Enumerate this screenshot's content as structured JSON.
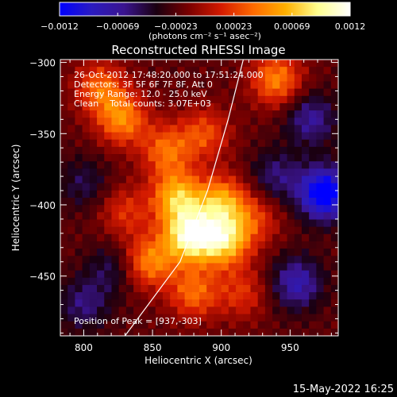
{
  "colorbar": {
    "ticks": [
      "-0.0012",
      "-0.00069",
      "-0.00023",
      "0.00023",
      "0.00069",
      "0.0012"
    ],
    "units_label": "(photons cm⁻² s⁻¹ asec⁻²)",
    "range": [
      -0.0012,
      0.0012
    ],
    "colormap": [
      "#0000ff",
      "#2b1bbf",
      "#3a148f",
      "#1a0010",
      "#7a0000",
      "#d41a00",
      "#ff6a00",
      "#ffb000",
      "#ffff90",
      "#ffffff"
    ]
  },
  "chart_data": {
    "type": "heatmap",
    "title": "Reconstructed RHESSI Image",
    "xlabel": "Heliocentric X (arcsec)",
    "ylabel": "Heliocentric Y (arcsec)",
    "xlim": [
      783,
      985
    ],
    "ylim": [
      -492,
      -298
    ],
    "x_ticks": [
      800,
      850,
      900,
      950
    ],
    "y_ticks": [
      -300,
      -350,
      -400,
      -450
    ],
    "x_tick_labels": [
      "800",
      "850",
      "900",
      "950"
    ],
    "y_tick_labels": [
      "−300",
      "−350",
      "−400",
      "−450"
    ],
    "limb_line": [
      {
        "x": 830,
        "y": -492
      },
      {
        "x": 870,
        "y": -440
      },
      {
        "x": 890,
        "y": -390
      },
      {
        "x": 905,
        "y": -340
      },
      {
        "x": 916,
        "y": -298
      }
    ],
    "hot_spots": [
      {
        "x": 877,
        "y": -422,
        "value": 0.0012
      },
      {
        "x": 902,
        "y": -425,
        "value": 0.001
      },
      {
        "x": 868,
        "y": -395,
        "value": 0.0009
      },
      {
        "x": 900,
        "y": -398,
        "value": 0.0008
      },
      {
        "x": 860,
        "y": -362,
        "value": 0.0006
      },
      {
        "x": 888,
        "y": -350,
        "value": 0.0005
      },
      {
        "x": 828,
        "y": -340,
        "value": 0.0007
      },
      {
        "x": 812,
        "y": -318,
        "value": 0.0006
      },
      {
        "x": 940,
        "y": -312,
        "value": 0.0007
      },
      {
        "x": 848,
        "y": -440,
        "value": 0.0007
      },
      {
        "x": 830,
        "y": -405,
        "value": 0.0004
      },
      {
        "x": 880,
        "y": -462,
        "value": 0.0006
      },
      {
        "x": 915,
        "y": -462,
        "value": 0.0004
      },
      {
        "x": 925,
        "y": -410,
        "value": 0.0004
      }
    ],
    "cold_spots": [
      {
        "x": 975,
        "y": -392,
        "value": -0.0011
      },
      {
        "x": 955,
        "y": -455,
        "value": -0.0006
      },
      {
        "x": 965,
        "y": -340,
        "value": -0.0005
      },
      {
        "x": 940,
        "y": -380,
        "value": -0.0004
      },
      {
        "x": 800,
        "y": -470,
        "value": -0.0004
      },
      {
        "x": 820,
        "y": -445,
        "value": -0.0003
      },
      {
        "x": 800,
        "y": -385,
        "value": -0.0003
      }
    ],
    "peak": {
      "x": 937,
      "y": -303
    },
    "info_lines": [
      "26-Oct-2012 17:48:20.000 to 17:51:24.000",
      "Detectors: 3F 5F 6F 7F 8F, Att 0",
      "Energy Range: 12.0 - 25.0 keV",
      "Clean    Total counts: 3.07E+03"
    ],
    "peak_label": "Position of Peak = [937,-303]",
    "grid": false
  },
  "footer": {
    "timestamp": "15-May-2022 16:25"
  }
}
